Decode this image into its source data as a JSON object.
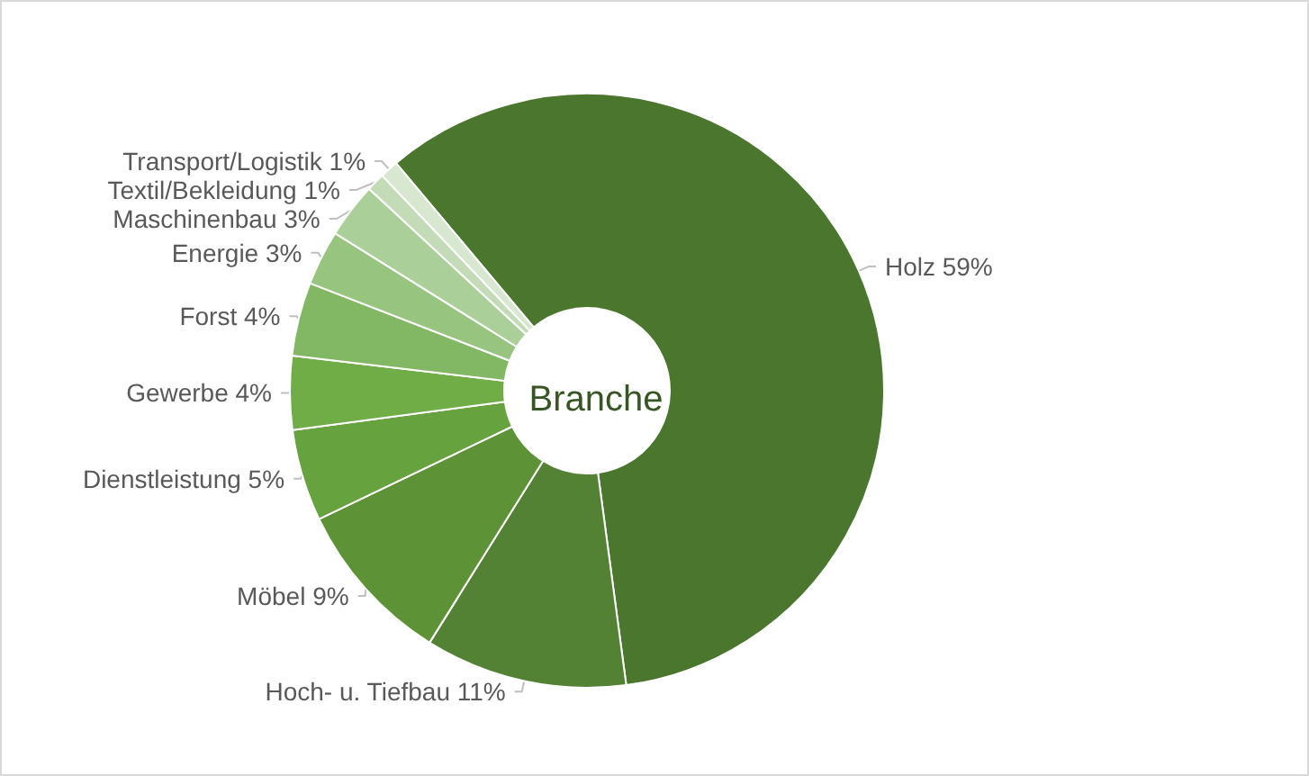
{
  "chart_data": {
    "type": "donut",
    "title": "Branche",
    "categories": [
      "Holz",
      "Hoch- u. Tiefbau",
      "Möbel",
      "Dienstleistung",
      "Gewerbe",
      "Forst",
      "Energie",
      "Maschinenbau",
      "Textil/Bekleidung",
      "Transport/Logistik"
    ],
    "values": [
      59,
      11,
      9,
      5,
      4,
      4,
      3,
      3,
      1,
      1
    ],
    "value_labels": [
      "59%",
      "11%",
      "9%",
      "5%",
      "4%",
      "4%",
      "3%",
      "3%",
      "1%",
      "1%"
    ],
    "colors": [
      "#4a762d",
      "#548235",
      "#5e9237",
      "#66a23d",
      "#70ad47",
      "#82b863",
      "#97c47e",
      "#abcf99",
      "#c3dbb6",
      "#d8e7d0"
    ],
    "legend": false
  }
}
